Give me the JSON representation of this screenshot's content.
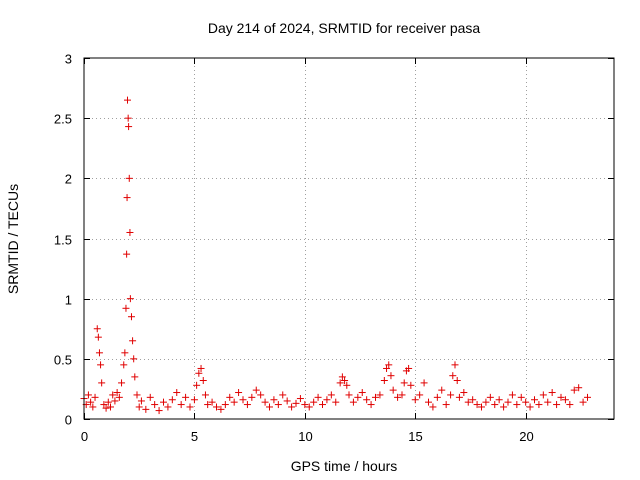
{
  "chart_data": {
    "type": "scatter",
    "title": "Day 214 of 2024, SRMTID for receiver pasa",
    "xlabel": "GPS time / hours",
    "ylabel": "SRMTID / TECUs",
    "xlim": [
      0,
      24
    ],
    "ylim": [
      0,
      3
    ],
    "xticks": [
      0,
      5,
      10,
      15,
      20
    ],
    "xtick_labels": [
      "0",
      "5",
      "10",
      "15",
      "20"
    ],
    "yticks": [
      0,
      0.5,
      1,
      1.5,
      2,
      2.5,
      3
    ],
    "ytick_labels": [
      "0",
      "0.5",
      "1",
      "1.5",
      "2",
      "2.5",
      "3"
    ],
    "grid": true,
    "marker": "+",
    "series": [
      {
        "name": "pasa",
        "color": "#e00000",
        "x": [
          0.0,
          0.1,
          0.2,
          0.3,
          0.4,
          0.5,
          0.6,
          0.65,
          0.7,
          0.75,
          0.8,
          0.9,
          1.0,
          1.1,
          1.2,
          1.3,
          1.4,
          1.5,
          1.6,
          1.7,
          1.8,
          1.85,
          1.9,
          1.93,
          1.95,
          1.97,
          2.0,
          2.02,
          2.05,
          2.08,
          2.1,
          2.15,
          2.2,
          2.25,
          2.3,
          2.4,
          2.5,
          2.6,
          2.8,
          3.0,
          3.2,
          3.4,
          3.6,
          3.8,
          4.0,
          4.2,
          4.4,
          4.6,
          4.8,
          5.0,
          5.1,
          5.2,
          5.3,
          5.4,
          5.5,
          5.6,
          5.8,
          6.0,
          6.2,
          6.4,
          6.6,
          6.8,
          7.0,
          7.2,
          7.4,
          7.6,
          7.8,
          8.0,
          8.2,
          8.4,
          8.6,
          8.8,
          9.0,
          9.2,
          9.4,
          9.6,
          9.8,
          10.0,
          10.2,
          10.4,
          10.6,
          10.8,
          11.0,
          11.2,
          11.4,
          11.6,
          11.7,
          11.8,
          11.9,
          12.0,
          12.2,
          12.4,
          12.6,
          12.8,
          13.0,
          13.2,
          13.4,
          13.6,
          13.7,
          13.8,
          13.9,
          14.0,
          14.2,
          14.4,
          14.5,
          14.6,
          14.7,
          14.8,
          15.0,
          15.2,
          15.4,
          15.6,
          15.8,
          16.0,
          16.2,
          16.4,
          16.6,
          16.7,
          16.8,
          16.9,
          17.0,
          17.2,
          17.4,
          17.6,
          17.8,
          18.0,
          18.2,
          18.4,
          18.6,
          18.8,
          19.0,
          19.2,
          19.4,
          19.6,
          19.8,
          20.0,
          20.2,
          20.4,
          20.6,
          20.8,
          21.0,
          21.2,
          21.4,
          21.6,
          21.8,
          22.0,
          22.2,
          22.4,
          22.6,
          22.8
        ],
        "values": [
          0.17,
          0.12,
          0.2,
          0.14,
          0.1,
          0.18,
          0.75,
          0.68,
          0.55,
          0.45,
          0.3,
          0.12,
          0.09,
          0.14,
          0.1,
          0.2,
          0.15,
          0.22,
          0.18,
          0.3,
          0.45,
          0.55,
          0.92,
          1.37,
          1.84,
          2.65,
          2.5,
          2.43,
          2.0,
          1.55,
          1.0,
          0.85,
          0.65,
          0.5,
          0.35,
          0.2,
          0.1,
          0.15,
          0.08,
          0.18,
          0.12,
          0.07,
          0.14,
          0.1,
          0.16,
          0.22,
          0.12,
          0.18,
          0.1,
          0.16,
          0.28,
          0.38,
          0.42,
          0.32,
          0.2,
          0.12,
          0.14,
          0.1,
          0.08,
          0.12,
          0.18,
          0.14,
          0.22,
          0.16,
          0.12,
          0.18,
          0.24,
          0.2,
          0.14,
          0.1,
          0.16,
          0.12,
          0.2,
          0.15,
          0.1,
          0.13,
          0.17,
          0.12,
          0.1,
          0.14,
          0.18,
          0.12,
          0.16,
          0.2,
          0.14,
          0.3,
          0.35,
          0.32,
          0.28,
          0.2,
          0.14,
          0.18,
          0.22,
          0.16,
          0.12,
          0.18,
          0.2,
          0.32,
          0.42,
          0.45,
          0.36,
          0.24,
          0.18,
          0.2,
          0.3,
          0.4,
          0.42,
          0.28,
          0.16,
          0.2,
          0.3,
          0.14,
          0.1,
          0.18,
          0.24,
          0.12,
          0.2,
          0.36,
          0.45,
          0.32,
          0.18,
          0.22,
          0.14,
          0.16,
          0.12,
          0.1,
          0.14,
          0.18,
          0.12,
          0.16,
          0.1,
          0.14,
          0.2,
          0.12,
          0.18,
          0.14,
          0.1,
          0.16,
          0.12,
          0.2,
          0.14,
          0.22,
          0.12,
          0.18,
          0.16,
          0.12,
          0.24,
          0.26,
          0.14,
          0.18
        ]
      }
    ]
  }
}
